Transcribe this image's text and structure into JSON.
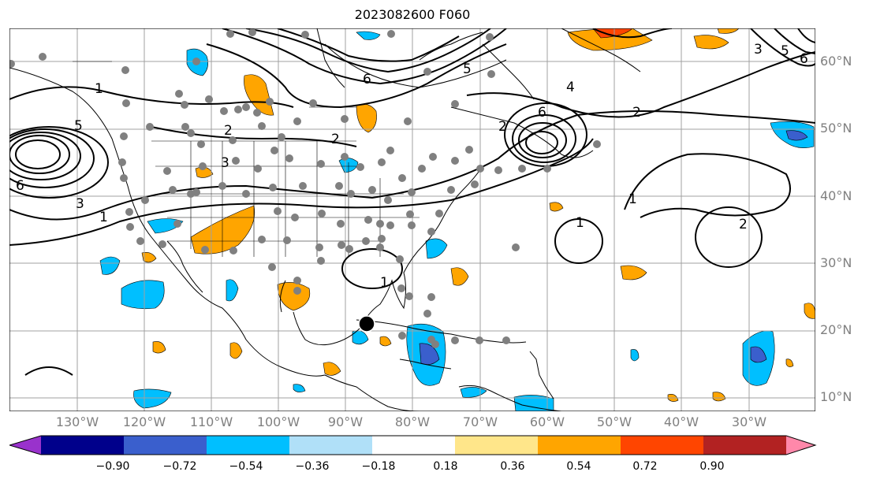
{
  "title": "2023082600 F060",
  "lat_labels": [
    "60°N",
    "50°N",
    "40°N",
    "30°N",
    "20°N",
    "10°N"
  ],
  "lon_labels": [
    "130°W",
    "120°W",
    "110°W",
    "100°W",
    "90°W",
    "80°W",
    "70°W",
    "60°W",
    "50°W",
    "40°W",
    "30°W"
  ],
  "contour_labels": {
    "c1": "1",
    "c2": "2",
    "c4": "4",
    "c5": "5",
    "c6": "6",
    "c3": "3"
  },
  "colorbar": {
    "ticks": [
      "−0.90",
      "−0.72",
      "−0.54",
      "−0.36",
      "−0.18",
      "0.18",
      "0.36",
      "0.54",
      "0.72",
      "0.90"
    ],
    "colors": [
      "#9932cc",
      "#00008b",
      "#3a5fcd",
      "#00bfff",
      "#b0e0f8",
      "#ffffff",
      "#ffe68a",
      "#ffa500",
      "#ff4500",
      "#b22222",
      "#ff88aa"
    ]
  },
  "marker": "storm-center"
}
